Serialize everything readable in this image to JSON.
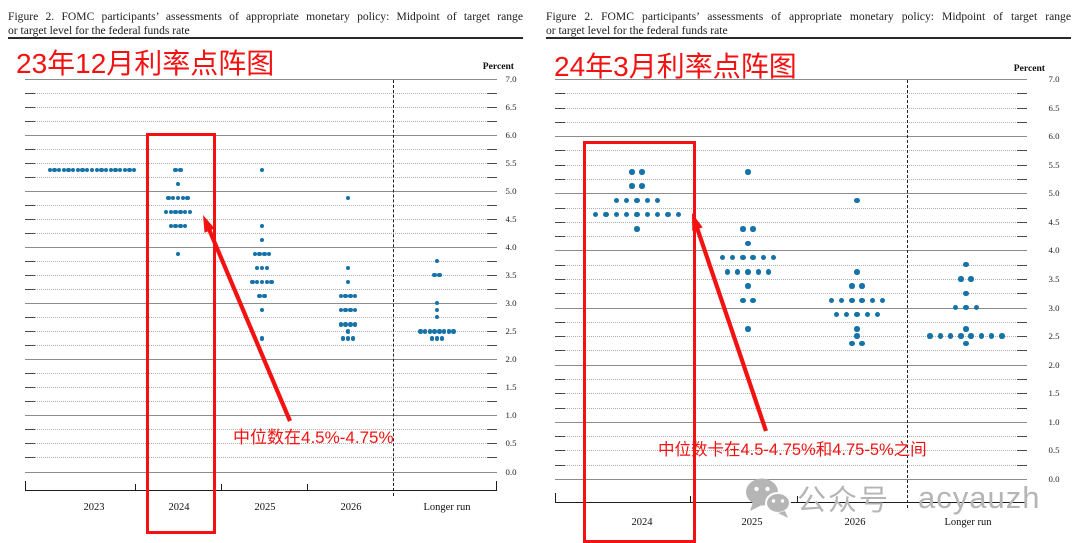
{
  "panels": [
    {
      "figure_title_line1": "Figure 2.  FOMC participants’ assessments of appropriate monetary policy:  Midpoint of target range",
      "figure_title_line2": "or target level for the federal funds rate",
      "heading": "23年12月利率点阵图",
      "percent_label": "Percent",
      "annotation": "中位数在4.5%-4.75%"
    },
    {
      "figure_title_line1": "Figure 2.  FOMC participants’ assessments of appropriate monetary policy:  Midpoint of target range",
      "figure_title_line2": "or target level for the federal funds rate",
      "heading": "24年3月利率点阵图",
      "percent_label": "Percent",
      "annotation": "中位数卡在4.5-4.75%和4.75-5%之间"
    }
  ],
  "chart_data": [
    {
      "type": "scatter",
      "variant": "fomc-dot-plot",
      "title": "23年12月利率点阵图",
      "ylabel": "Percent",
      "ylim": [
        0.0,
        7.0
      ],
      "grid_step": 0.25,
      "yticks": [
        7.0,
        6.5,
        6.0,
        5.5,
        5.0,
        4.5,
        4.0,
        3.5,
        3.0,
        2.5,
        2.0,
        1.5,
        1.0,
        0.5,
        0.0
      ],
      "categories": [
        "2023",
        "2024",
        "2025",
        "2026",
        "Longer run"
      ],
      "highlighted_category": "2024",
      "annotation": "中位数在4.5%-4.75%",
      "dots": {
        "2023": [
          [
            5.375,
            19
          ]
        ],
        "2024": [
          [
            5.375,
            2
          ],
          [
            5.125,
            1
          ],
          [
            4.875,
            5
          ],
          [
            4.625,
            6
          ],
          [
            4.375,
            4
          ],
          [
            3.875,
            1
          ]
        ],
        "2025": [
          [
            5.375,
            1
          ],
          [
            4.375,
            1
          ],
          [
            4.125,
            1
          ],
          [
            3.875,
            4
          ],
          [
            3.625,
            3
          ],
          [
            3.375,
            5
          ],
          [
            3.125,
            2
          ],
          [
            2.875,
            1
          ],
          [
            2.375,
            1
          ]
        ],
        "2026": [
          [
            4.875,
            1
          ],
          [
            3.625,
            1
          ],
          [
            3.375,
            1
          ],
          [
            3.125,
            4
          ],
          [
            2.875,
            4
          ],
          [
            2.625,
            4
          ],
          [
            2.5,
            1
          ],
          [
            2.375,
            3
          ]
        ],
        "Longer run": [
          [
            3.75,
            1
          ],
          [
            3.5,
            2
          ],
          [
            3.0,
            1
          ],
          [
            2.875,
            1
          ],
          [
            2.75,
            1
          ],
          [
            2.5,
            8
          ],
          [
            2.375,
            3
          ]
        ]
      }
    },
    {
      "type": "scatter",
      "variant": "fomc-dot-plot",
      "title": "24年3月利率点阵图",
      "ylabel": "Percent",
      "ylim": [
        0.0,
        7.0
      ],
      "grid_step": 0.25,
      "yticks": [
        7.0,
        6.5,
        6.0,
        5.5,
        5.0,
        4.5,
        4.0,
        3.5,
        3.0,
        2.5,
        2.0,
        1.5,
        1.0,
        0.5,
        0.0
      ],
      "categories": [
        "2024",
        "2025",
        "2026",
        "Longer run"
      ],
      "highlighted_category": "2024",
      "annotation": "中位数卡在4.5-4.75%和4.75-5%之间",
      "dots": {
        "2024": [
          [
            5.375,
            2
          ],
          [
            5.125,
            2
          ],
          [
            4.875,
            5
          ],
          [
            4.625,
            9
          ],
          [
            4.375,
            1
          ]
        ],
        "2025": [
          [
            5.375,
            1
          ],
          [
            4.375,
            2
          ],
          [
            4.125,
            1
          ],
          [
            3.875,
            6
          ],
          [
            3.625,
            5
          ],
          [
            3.375,
            1
          ],
          [
            3.125,
            2
          ],
          [
            2.625,
            1
          ]
        ],
        "2026": [
          [
            4.875,
            1
          ],
          [
            3.625,
            1
          ],
          [
            3.375,
            2
          ],
          [
            3.125,
            6
          ],
          [
            2.875,
            5
          ],
          [
            2.625,
            1
          ],
          [
            2.5,
            1
          ],
          [
            2.375,
            2
          ]
        ],
        "Longer run": [
          [
            3.75,
            1
          ],
          [
            3.5,
            2
          ],
          [
            3.25,
            1
          ],
          [
            3.0,
            3
          ],
          [
            2.625,
            1
          ],
          [
            2.5,
            8
          ],
          [
            2.375,
            1
          ]
        ]
      }
    }
  ],
  "watermark": {
    "icon": "wechat-icon",
    "platform": "公众号",
    "handle": "acyauzh"
  },
  "colors": {
    "red": "#f31212",
    "dot": "#1673a8",
    "wm": "#b5b5b5"
  }
}
